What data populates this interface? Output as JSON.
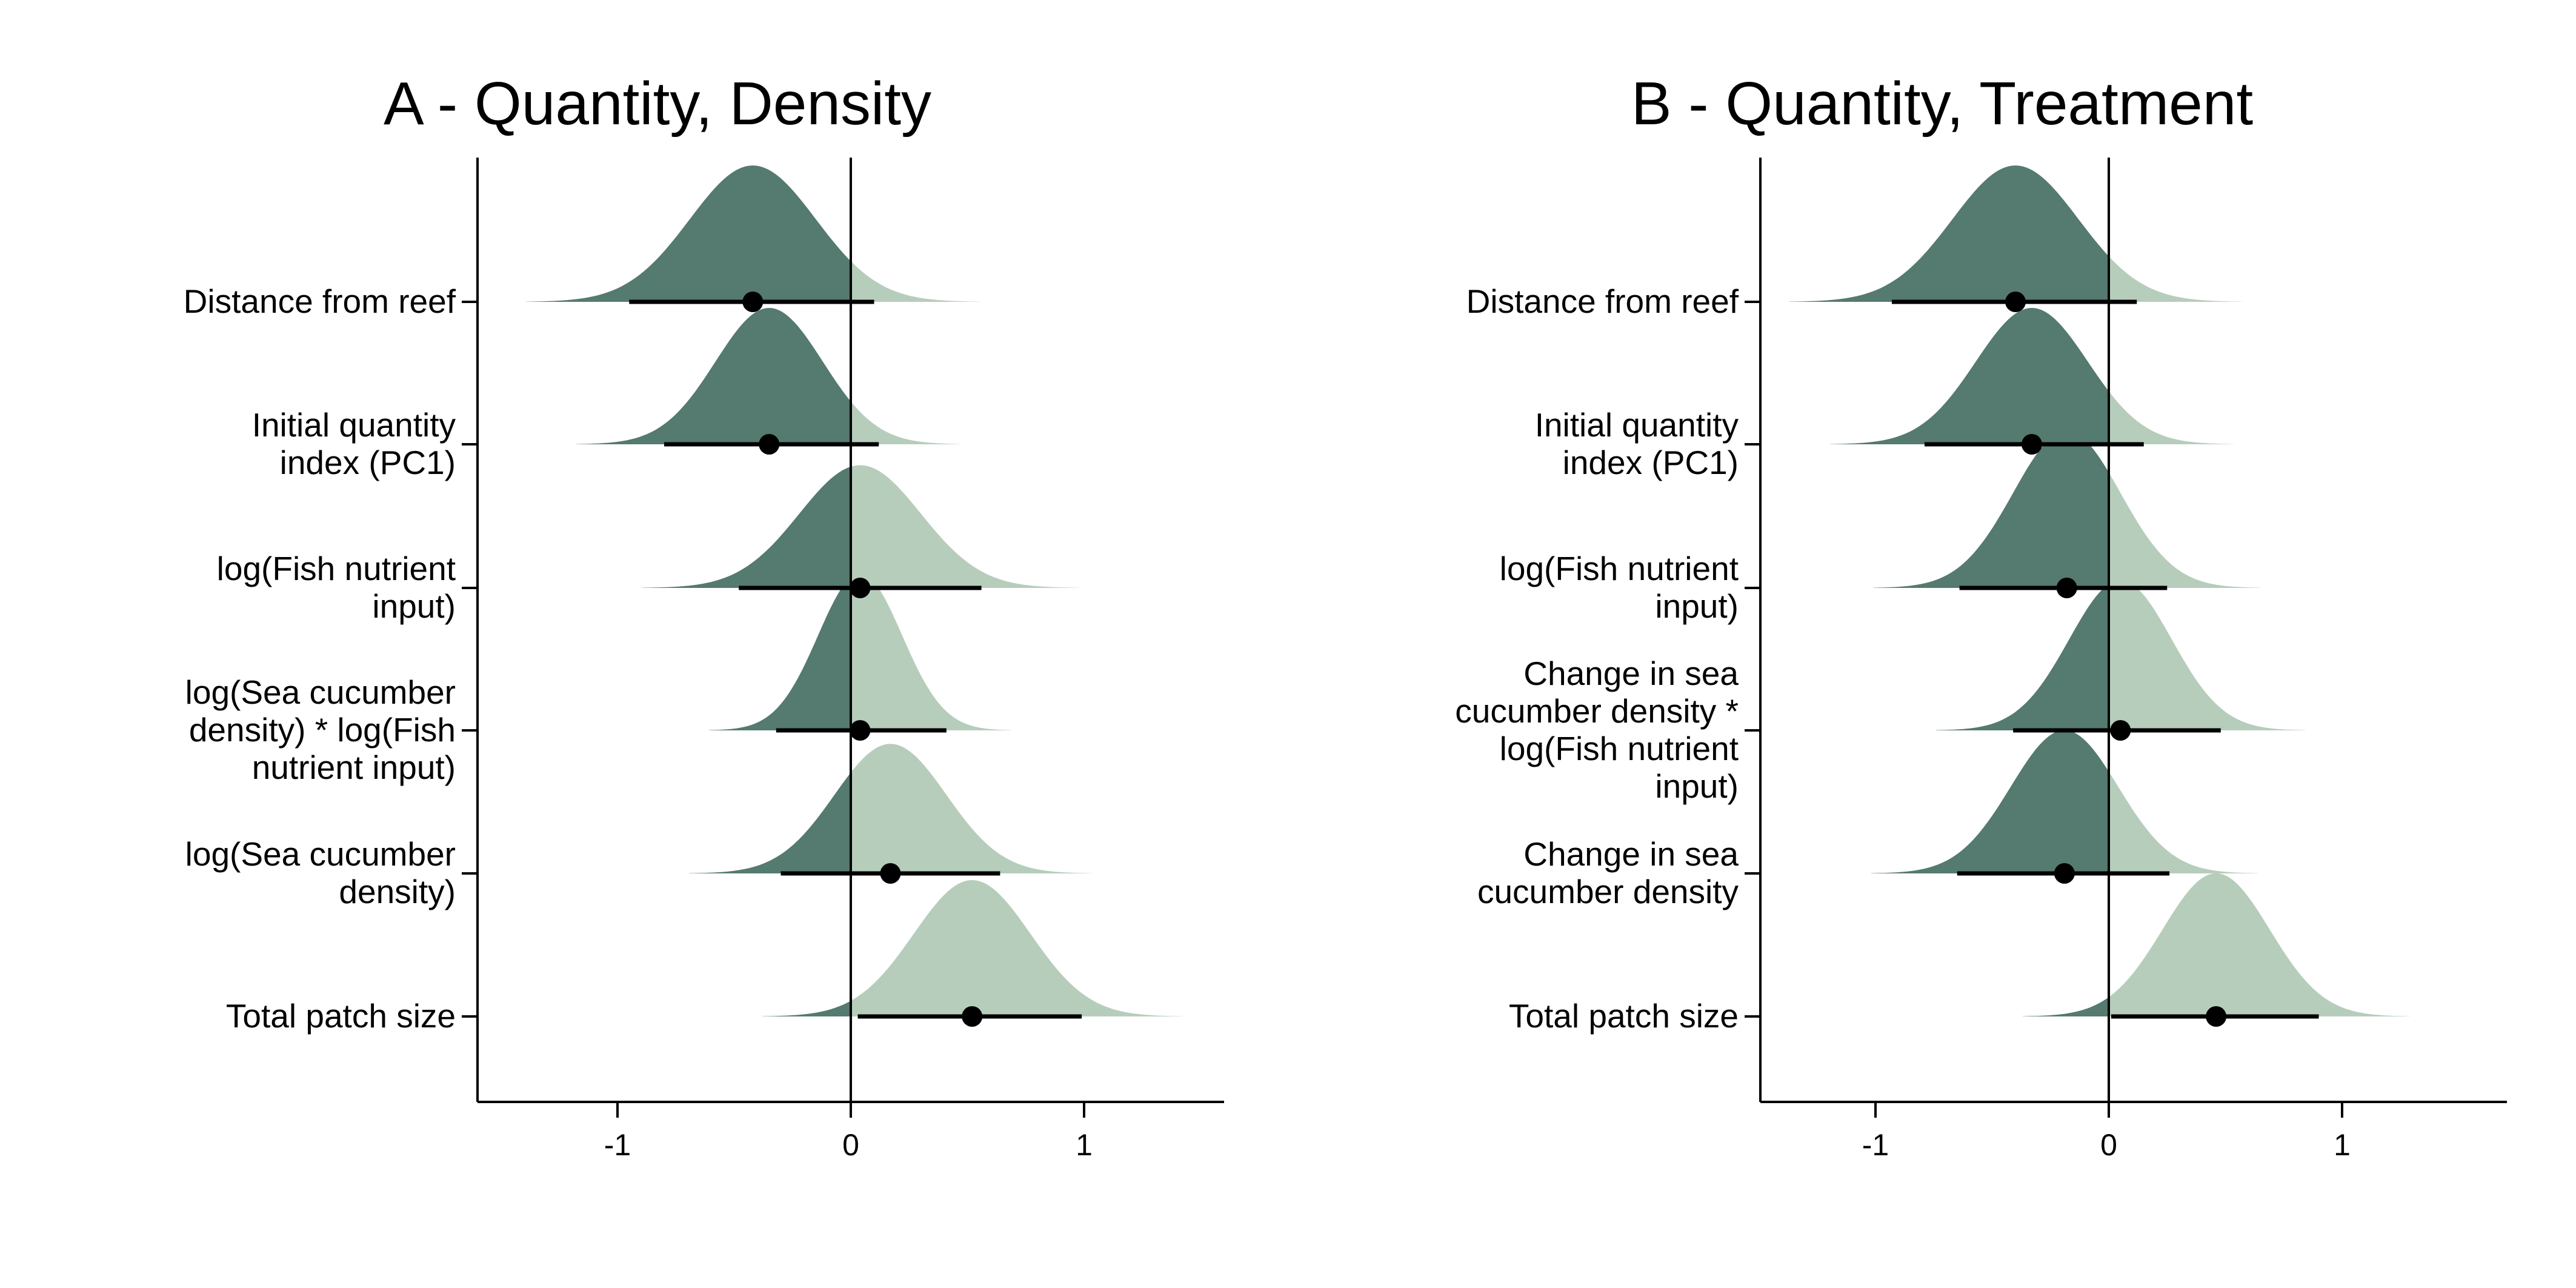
{
  "colors": {
    "negative": "#557a70",
    "positive": "#b6cdbb",
    "point": "#000000"
  },
  "chart_data": [
    {
      "type": "ridgeline",
      "title": "A - Quantity, Density",
      "xlim": [
        -1.6,
        1.6
      ],
      "xticks": [
        -1,
        0,
        1
      ],
      "xtick_labels": [
        "-1",
        "0",
        "1"
      ],
      "grid": false,
      "rows": [
        {
          "label": [
            "Distance from reef"
          ],
          "median": -0.42,
          "ci": [
            -0.95,
            0.1
          ],
          "sd": 0.27,
          "ridge_height": 1.0
        },
        {
          "label": [
            "Initial quantity",
            "index (PC1)"
          ],
          "median": -0.35,
          "ci": [
            -0.8,
            0.12
          ],
          "sd": 0.23,
          "ridge_height": 1.0
        },
        {
          "label": [
            "log(Fish nutrient",
            "input)"
          ],
          "median": 0.04,
          "ci": [
            -0.48,
            0.56
          ],
          "sd": 0.26,
          "ridge_height": 0.9
        },
        {
          "label": [
            "log(Sea cucumber",
            "density) * log(Fish",
            "nutrient input)"
          ],
          "median": 0.04,
          "ci": [
            -0.32,
            0.41
          ],
          "sd": 0.18,
          "ridge_height": 1.15
        },
        {
          "label": [
            "log(Sea cucumber",
            "density)"
          ],
          "median": 0.17,
          "ci": [
            -0.3,
            0.64
          ],
          "sd": 0.24,
          "ridge_height": 0.95
        },
        {
          "label": [
            "Total patch size"
          ],
          "median": 0.52,
          "ci": [
            0.03,
            0.99
          ],
          "sd": 0.25,
          "ridge_height": 1.0
        }
      ]
    },
    {
      "type": "ridgeline",
      "title": "B - Quantity, Treatment",
      "xlim": [
        -1.6,
        1.6
      ],
      "xticks": [
        -1,
        0,
        1
      ],
      "xtick_labels": [
        "-1",
        "0",
        "1"
      ],
      "grid": false,
      "rows": [
        {
          "label": [
            "Distance from reef"
          ],
          "median": -0.4,
          "ci": [
            -0.93,
            0.12
          ],
          "sd": 0.27,
          "ridge_height": 1.0
        },
        {
          "label": [
            "Initial quantity",
            "index (PC1)"
          ],
          "median": -0.33,
          "ci": [
            -0.79,
            0.15
          ],
          "sd": 0.24,
          "ridge_height": 1.0
        },
        {
          "label": [
            "log(Fish nutrient",
            "input)"
          ],
          "median": -0.18,
          "ci": [
            -0.64,
            0.25
          ],
          "sd": 0.23,
          "ridge_height": 1.15
        },
        {
          "label": [
            "Change in sea",
            "cucumber density *",
            "log(Fish nutrient",
            "input)"
          ],
          "median": 0.05,
          "ci": [
            -0.41,
            0.48
          ],
          "sd": 0.22,
          "ridge_height": 1.1
        },
        {
          "label": [
            "Change in sea",
            "cucumber density"
          ],
          "median": -0.19,
          "ci": [
            -0.65,
            0.26
          ],
          "sd": 0.23,
          "ridge_height": 1.05
        },
        {
          "label": [
            "Total patch size"
          ],
          "median": 0.46,
          "ci": [
            0.01,
            0.9
          ],
          "sd": 0.23,
          "ridge_height": 1.05
        }
      ]
    }
  ]
}
